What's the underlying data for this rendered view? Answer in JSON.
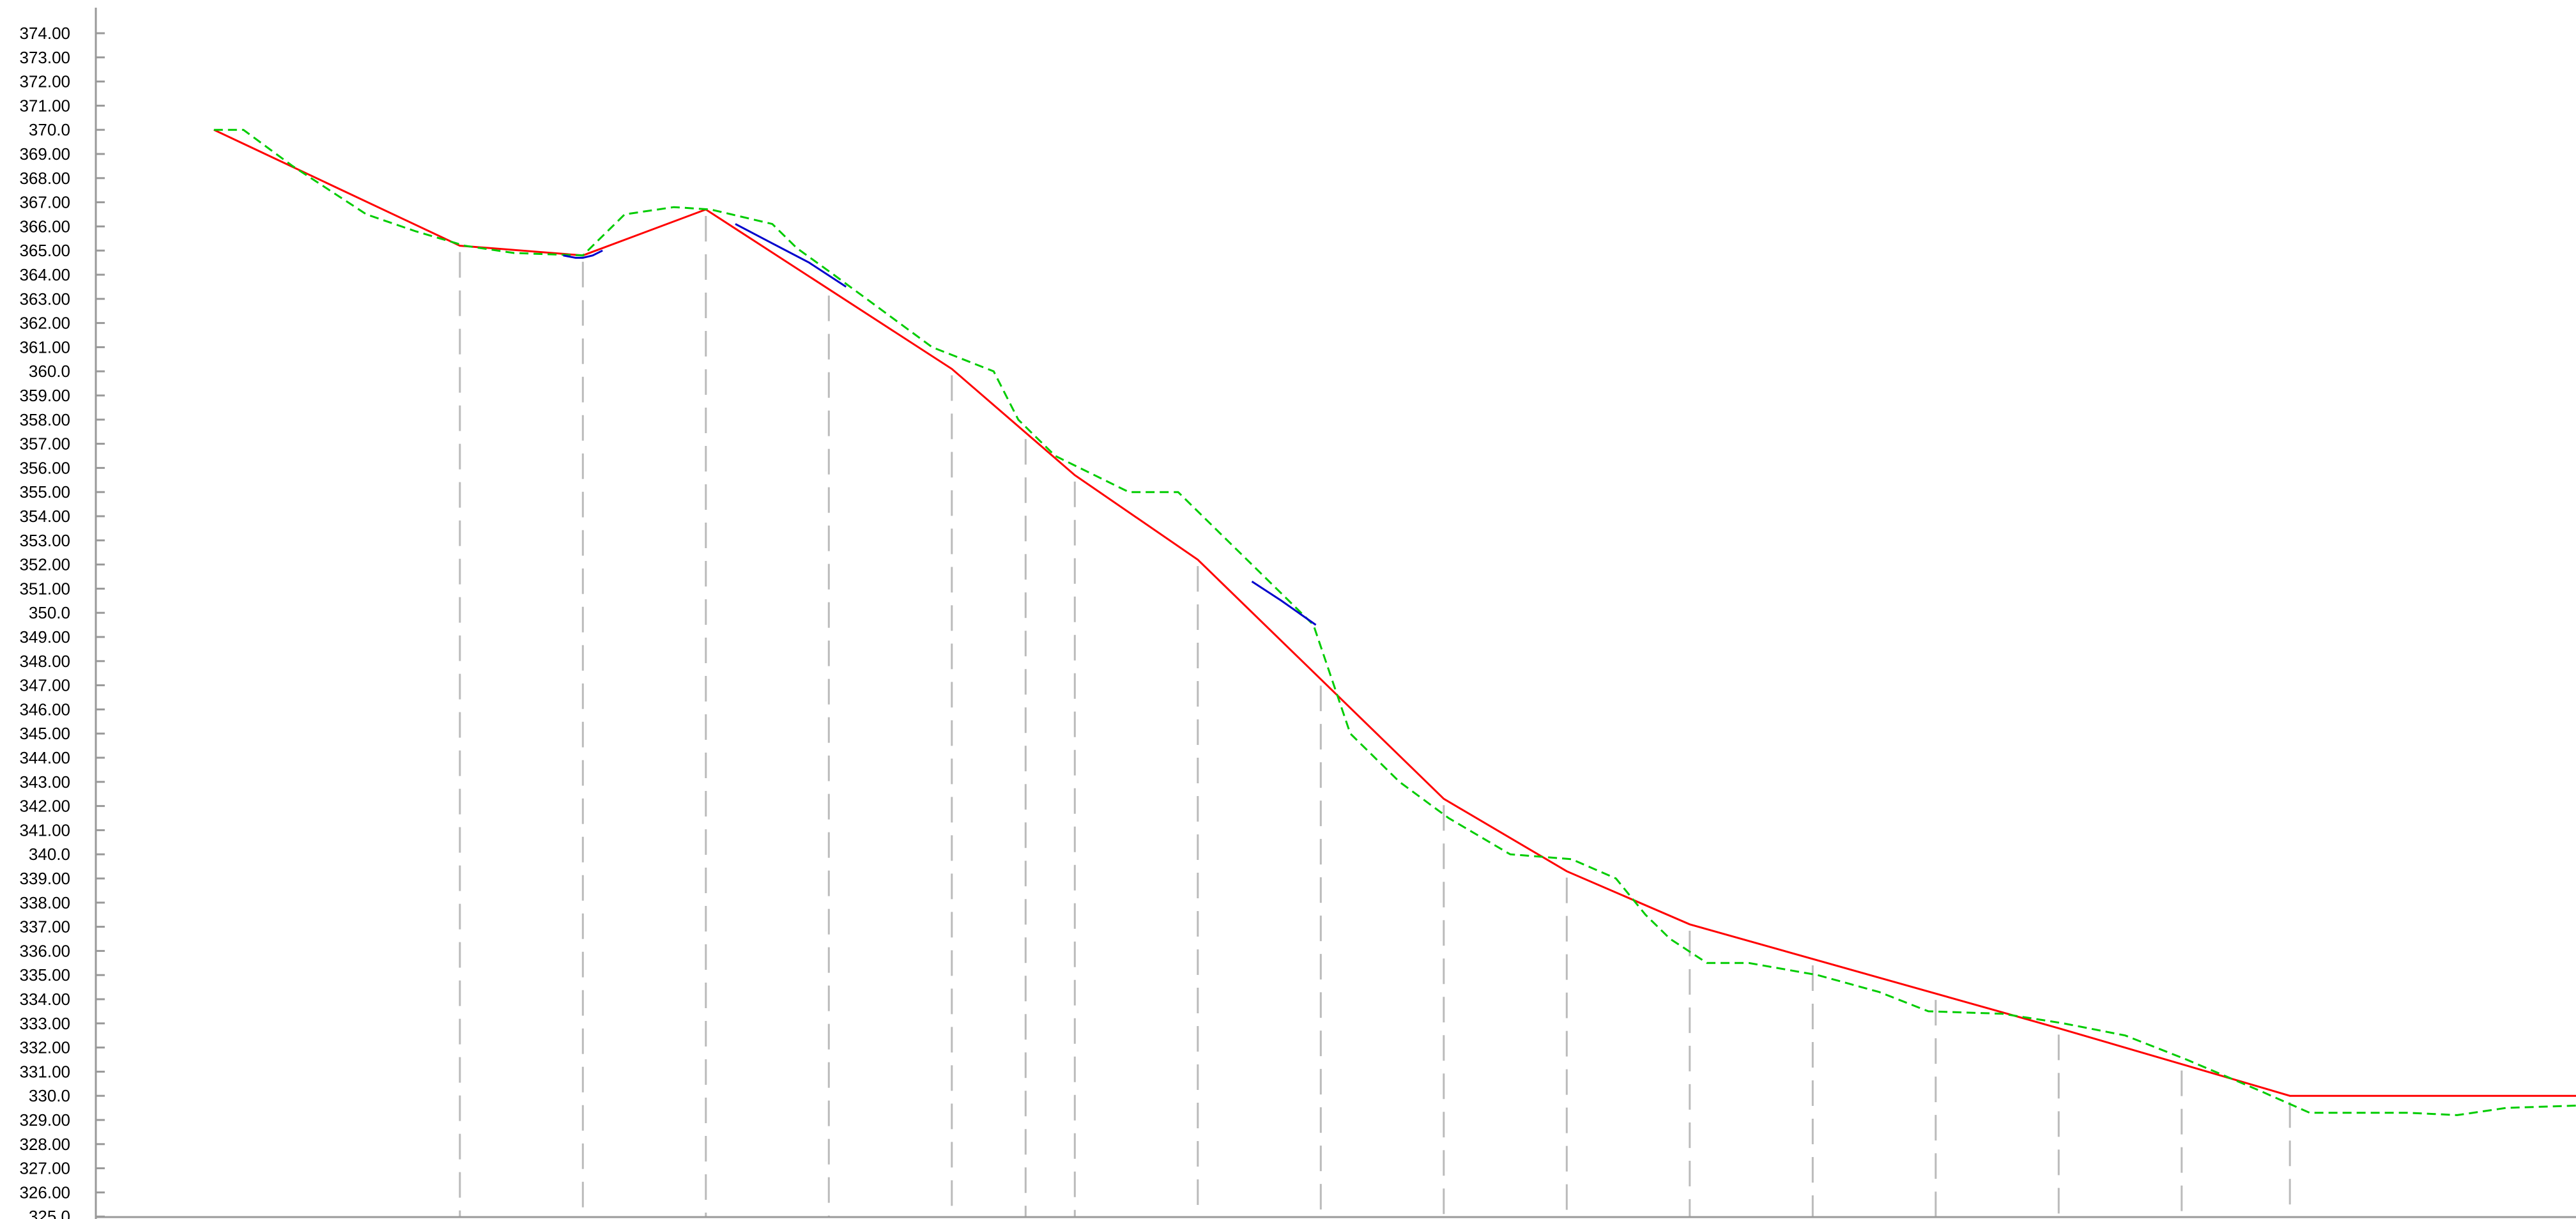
{
  "chart_data": {
    "type": "line",
    "title": "",
    "xlabel": "",
    "ylabel": "",
    "ylim": [
      325,
      375
    ],
    "y_ticks": [
      {
        "value": 374,
        "label": "374.00"
      },
      {
        "value": 373,
        "label": "373.00"
      },
      {
        "value": 372,
        "label": "372.00"
      },
      {
        "value": 371,
        "label": "371.00"
      },
      {
        "value": 370,
        "label": "370.0"
      },
      {
        "value": 369,
        "label": "369.00"
      },
      {
        "value": 368,
        "label": "368.00"
      },
      {
        "value": 367,
        "label": "367.00"
      },
      {
        "value": 366,
        "label": "366.00"
      },
      {
        "value": 365,
        "label": "365.00"
      },
      {
        "value": 364,
        "label": "364.00"
      },
      {
        "value": 363,
        "label": "363.00"
      },
      {
        "value": 362,
        "label": "362.00"
      },
      {
        "value": 361,
        "label": "361.00"
      },
      {
        "value": 360,
        "label": "360.0"
      },
      {
        "value": 359,
        "label": "359.00"
      },
      {
        "value": 358,
        "label": "358.00"
      },
      {
        "value": 357,
        "label": "357.00"
      },
      {
        "value": 356,
        "label": "356.00"
      },
      {
        "value": 355,
        "label": "355.00"
      },
      {
        "value": 354,
        "label": "354.00"
      },
      {
        "value": 353,
        "label": "353.00"
      },
      {
        "value": 352,
        "label": "352.00"
      },
      {
        "value": 351,
        "label": "351.00"
      },
      {
        "value": 350,
        "label": "350.0"
      },
      {
        "value": 349,
        "label": "349.00"
      },
      {
        "value": 348,
        "label": "348.00"
      },
      {
        "value": 347,
        "label": "347.00"
      },
      {
        "value": 346,
        "label": "346.00"
      },
      {
        "value": 345,
        "label": "345.00"
      },
      {
        "value": 344,
        "label": "344.00"
      },
      {
        "value": 343,
        "label": "343.00"
      },
      {
        "value": 342,
        "label": "342.00"
      },
      {
        "value": 341,
        "label": "341.00"
      },
      {
        "value": 340,
        "label": "340.0"
      },
      {
        "value": 339,
        "label": "339.00"
      },
      {
        "value": 338,
        "label": "338.00"
      },
      {
        "value": 337,
        "label": "337.00"
      },
      {
        "value": 336,
        "label": "336.00"
      },
      {
        "value": 335,
        "label": "335.00"
      },
      {
        "value": 334,
        "label": "334.00"
      },
      {
        "value": 333,
        "label": "333.00"
      },
      {
        "value": 332,
        "label": "332.00"
      },
      {
        "value": 331,
        "label": "331.00"
      },
      {
        "value": 330,
        "label": "330.0"
      },
      {
        "value": 329,
        "label": "329.00"
      },
      {
        "value": 328,
        "label": "328.00"
      },
      {
        "value": 327,
        "label": "327.00"
      },
      {
        "value": 326,
        "label": "326.00"
      },
      {
        "value": 325,
        "label": "325.0"
      }
    ],
    "xlim": [
      0,
      1000
    ],
    "x_axis_labels": false,
    "grid": "vertical dashed lines at station points",
    "stations": [
      148,
      198,
      248,
      298,
      348,
      378,
      398,
      448,
      498,
      548,
      598,
      648,
      698,
      748,
      798,
      848,
      892
    ],
    "colors": {
      "design_line": "#ff0000",
      "ground_line": "#00cc00",
      "vertical_curve": "#0000cc",
      "station_lines": "#bbbbbb",
      "axis": "#999999"
    },
    "series": [
      {
        "style": "solid",
        "color": "#ff0000",
        "x": [
          48,
          148,
          198,
          248,
          348,
          398,
          448,
          548,
          598,
          648,
          798,
          892,
          1010
        ],
        "y": [
          370.0,
          365.2,
          364.8,
          366.7,
          360.1,
          355.7,
          352.2,
          342.3,
          339.3,
          337.1,
          332.8,
          330.0,
          330.0
        ]
      },
      {
        "style": "dashed",
        "color": "#00cc00",
        "x": [
          48,
          60,
          80,
          110,
          130,
          150,
          170,
          198,
          215,
          235,
          250,
          275,
          285,
          300,
          320,
          340,
          365,
          375,
          390,
          420,
          440,
          460,
          485,
          490,
          495,
          510,
          530,
          550,
          575,
          600,
          618,
          630,
          640,
          655,
          672,
          700,
          725,
          745,
          775,
          800,
          825,
          850,
          880,
          900,
          940,
          960,
          980,
          1010
        ],
        "y": [
          370.0,
          370.0,
          368.5,
          366.5,
          365.8,
          365.2,
          364.9,
          364.8,
          366.5,
          366.8,
          366.7,
          366.1,
          365.1,
          364.0,
          362.5,
          361.0,
          360.0,
          358.0,
          356.5,
          355.0,
          355.0,
          353.0,
          350.5,
          350.0,
          349.5,
          345.0,
          343.0,
          341.5,
          340.0,
          339.8,
          339.0,
          337.5,
          336.5,
          335.5,
          335.5,
          335.0,
          334.3,
          333.5,
          333.4,
          333.0,
          332.5,
          331.5,
          330.2,
          329.3,
          329.3,
          329.2,
          329.5,
          329.6
        ]
      },
      {
        "style": "solid",
        "color": "#0000cc",
        "x": [
          190,
          195,
          198,
          202,
          206
        ],
        "y": [
          364.8,
          364.7,
          364.7,
          364.8,
          365.0
        ]
      },
      {
        "style": "solid",
        "color": "#0000cc",
        "x": [
          260,
          275,
          290,
          305
        ],
        "y": [
          366.1,
          365.3,
          364.5,
          363.5
        ]
      },
      {
        "style": "solid",
        "color": "#0000cc",
        "x": [
          470,
          482,
          496
        ],
        "y": [
          351.3,
          350.5,
          349.5
        ]
      }
    ]
  }
}
